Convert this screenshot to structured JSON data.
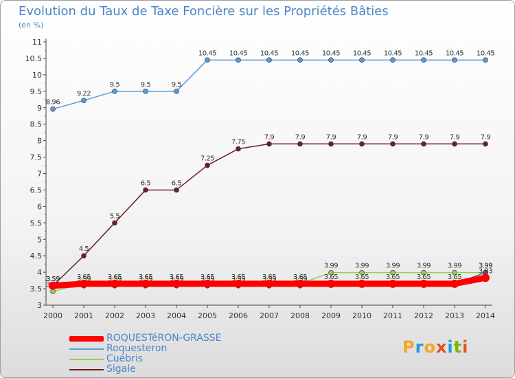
{
  "title": "Evolution du Taux de Taxe Foncière sur les Propriétés Bâties",
  "subtitle": "(en %)",
  "logo": "Proxiti",
  "chart_data": {
    "type": "line",
    "x": [
      "2000",
      "2001",
      "2002",
      "2003",
      "2004",
      "2005",
      "2006",
      "2007",
      "2008",
      "2009",
      "2010",
      "2011",
      "2012",
      "2013",
      "2014"
    ],
    "ylim": [
      3,
      11
    ],
    "yticks": [
      "3",
      "3.5",
      "4",
      "4.5",
      "5",
      "5.5",
      "6",
      "6.5",
      "7",
      "7.5",
      "8",
      "8.5",
      "9",
      "9.5",
      "10",
      "10.5",
      "11"
    ],
    "grid": false,
    "legend_position": "bottom-left",
    "series": [
      {
        "name": "ROQUESTéRON-GRASSE",
        "color": "#ff0000",
        "values": [
          3.59,
          3.65,
          3.65,
          3.65,
          3.65,
          3.65,
          3.65,
          3.65,
          3.65,
          3.65,
          3.65,
          3.65,
          3.65,
          3.65,
          3.83
        ],
        "labels": [
          "3.59",
          "",
          "",
          "",
          "",
          "",
          "",
          "",
          "",
          "",
          "",
          "",
          "",
          "",
          "3.83"
        ]
      },
      {
        "name": "Roquesteron",
        "color": "#5b9bd5",
        "values": [
          8.96,
          9.22,
          9.5,
          9.5,
          9.5,
          10.45,
          10.45,
          10.45,
          10.45,
          10.45,
          10.45,
          10.45,
          10.45,
          10.45,
          10.45
        ],
        "labels": [
          "8.96",
          "9.22",
          "9.5",
          "9.5",
          "9.5",
          "10.45",
          "10.45",
          "10.45",
          "10.45",
          "10.45",
          "10.45",
          "10.45",
          "10.45",
          "10.45",
          "10.45"
        ]
      },
      {
        "name": "Cuébris",
        "color": "#92d050",
        "values": [
          3.42,
          3.65,
          3.65,
          3.65,
          3.65,
          3.65,
          3.65,
          3.65,
          3.65,
          3.99,
          3.99,
          3.99,
          3.99,
          3.99,
          3.99
        ],
        "labels": [
          "3.42",
          "3.65",
          "3.65",
          "3.65",
          "3.65",
          "3.65",
          "3.65",
          "3.65",
          "3.65",
          "3.99",
          "3.99",
          "3.99",
          "3.99",
          "3.99",
          "3.99"
        ]
      },
      {
        "name": "Sigale",
        "color": "#6b1f24",
        "values": [
          3.59,
          4.5,
          5.5,
          6.5,
          6.5,
          7.25,
          7.75,
          7.9,
          7.9,
          7.9,
          7.9,
          7.9,
          7.9,
          7.9,
          7.9
        ],
        "labels": [
          "3.59",
          "4.5",
          "5.5",
          "6.5",
          "6.5",
          "7.25",
          "7.75",
          "7.9",
          "7.9",
          "7.9",
          "7.9",
          "7.9",
          "7.9",
          "7.9",
          "7.9"
        ]
      },
      {
        "name": "",
        "color": "#5b5b9b",
        "values": [
          3.59,
          3.59,
          3.59,
          3.59,
          3.59,
          3.59,
          3.59,
          3.59,
          3.59,
          3.65,
          3.65,
          3.65,
          3.65,
          3.65,
          3.99
        ],
        "labels": [
          "3.59",
          "3.59",
          "3.59",
          "3.59",
          "3.59",
          "3.59",
          "3.59",
          "3.59",
          "3.59",
          "3.65",
          "3.65",
          "3.65",
          "3.65",
          "3.65",
          "3.99"
        ]
      }
    ]
  }
}
